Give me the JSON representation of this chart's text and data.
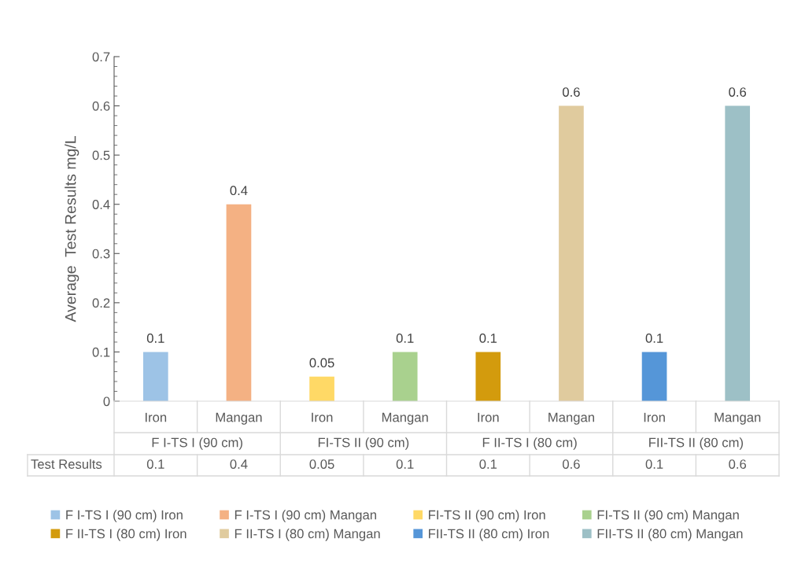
{
  "chart_data": {
    "type": "bar",
    "ylabel": "Average  Test Results mg/L",
    "categories": [
      "Iron",
      "Mangan",
      "Iron",
      "Mangan",
      "Iron",
      "Mangan",
      "Iron",
      "Mangan"
    ],
    "series": [
      {
        "name": "F I-TS I (90 cm) Iron",
        "color": "#9dc3e6",
        "values": [
          0.1,
          null,
          null,
          null,
          null,
          null,
          null,
          null
        ]
      },
      {
        "name": "F I-TS I (90 cm) Mangan",
        "color": "#f4b183",
        "values": [
          null,
          0.4,
          null,
          null,
          null,
          null,
          null,
          null
        ]
      },
      {
        "name": "FI-TS II (90 cm) Iron",
        "color": "#ffd966",
        "values": [
          null,
          null,
          0.05,
          null,
          null,
          null,
          null,
          null
        ]
      },
      {
        "name": "FI-TS II (90 cm) Mangan",
        "color": "#a9d18e",
        "values": [
          null,
          null,
          null,
          0.1,
          null,
          null,
          null,
          null
        ]
      },
      {
        "name": "F II-TS I (80 cm) Iron",
        "color": "#d39b0d",
        "values": [
          null,
          null,
          null,
          null,
          0.1,
          null,
          null,
          null
        ]
      },
      {
        "name": "F II-TS I (80 cm) Mangan",
        "color": "#e0cb9e",
        "values": [
          null,
          null,
          null,
          null,
          null,
          0.6,
          null,
          null
        ]
      },
      {
        "name": "FII-TS II (80 cm) Iron",
        "color": "#5596d8",
        "values": [
          null,
          null,
          null,
          null,
          null,
          null,
          0.1,
          null
        ]
      },
      {
        "name": "FII-TS II (80 cm) Mangan",
        "color": "#9dc0c6",
        "values": [
          null,
          null,
          null,
          null,
          null,
          null,
          null,
          0.6
        ]
      }
    ],
    "ylim": [
      0,
      0.7
    ],
    "yticks": [
      0,
      0.1,
      0.2,
      0.3,
      0.4,
      0.5,
      0.6,
      0.7
    ],
    "data_labels": true,
    "legend": "bottom",
    "grid": false,
    "annotations": [
      "F I-TS I (90 cm)",
      "FI-TS II (90 cm)",
      "F II-TS I (80 cm)",
      "FII-TS II (80 cm)",
      "Test Results",
      "0.1",
      "0.4",
      "0.05",
      "0.1",
      "0.1",
      "0.6",
      "0.1",
      "0.6"
    ]
  }
}
